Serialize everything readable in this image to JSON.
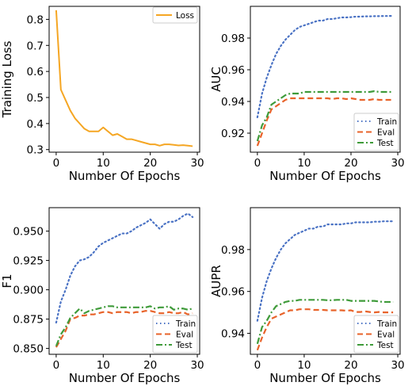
{
  "chart_data": [
    {
      "type": "line",
      "xlabel": "Number Of Epochs",
      "ylabel": "Training Loss",
      "xlim": [
        -1.5,
        30.5
      ],
      "ylim": [
        0.29,
        0.85
      ],
      "xticks": [
        "0",
        "10",
        "20",
        "30"
      ],
      "yticks": [
        "0.3",
        "0.4",
        "0.5",
        "0.6",
        "0.7",
        "0.8"
      ],
      "legend_position": "top-right",
      "grid": false,
      "series": [
        {
          "name": "Loss",
          "color": "#f5a623",
          "style": "solid",
          "x": [
            0,
            1,
            2,
            3,
            4,
            5,
            6,
            7,
            8,
            9,
            10,
            11,
            12,
            13,
            14,
            15,
            16,
            17,
            18,
            19,
            20,
            21,
            22,
            23,
            24,
            25,
            26,
            27,
            28,
            29
          ],
          "values": [
            0.835,
            0.53,
            0.49,
            0.45,
            0.42,
            0.4,
            0.38,
            0.37,
            0.37,
            0.37,
            0.385,
            0.37,
            0.355,
            0.36,
            0.35,
            0.34,
            0.34,
            0.335,
            0.33,
            0.325,
            0.32,
            0.32,
            0.315,
            0.32,
            0.32,
            0.318,
            0.316,
            0.317,
            0.315,
            0.313
          ]
        }
      ]
    },
    {
      "type": "line",
      "xlabel": "Number Of Epochs",
      "ylabel": "AUC",
      "xlim": [
        -1.5,
        30.5
      ],
      "ylim": [
        0.908,
        1.0
      ],
      "xticks": [
        "0",
        "10",
        "20",
        "30"
      ],
      "yticks": [
        "0.92",
        "0.94",
        "0.96",
        "0.98"
      ],
      "legend_position": "bottom-right",
      "grid": false,
      "series": [
        {
          "name": "Train",
          "color": "#4a72c4",
          "style": "dotted",
          "x": [
            0,
            1,
            2,
            3,
            4,
            5,
            6,
            7,
            8,
            9,
            10,
            11,
            12,
            13,
            14,
            15,
            16,
            17,
            18,
            19,
            20,
            21,
            22,
            23,
            24,
            25,
            26,
            27,
            28,
            29
          ],
          "values": [
            0.93,
            0.945,
            0.955,
            0.963,
            0.97,
            0.975,
            0.979,
            0.982,
            0.985,
            0.987,
            0.988,
            0.989,
            0.99,
            0.991,
            0.991,
            0.992,
            0.992,
            0.9925,
            0.993,
            0.993,
            0.9932,
            0.9935,
            0.9935,
            0.9937,
            0.9937,
            0.9938,
            0.9938,
            0.9939,
            0.9939,
            0.994
          ]
        },
        {
          "name": "Eval",
          "color": "#e8632a",
          "style": "dashed",
          "x": [
            0,
            1,
            2,
            3,
            4,
            5,
            6,
            7,
            8,
            9,
            10,
            11,
            12,
            13,
            14,
            15,
            16,
            17,
            18,
            19,
            20,
            21,
            22,
            23,
            24,
            25,
            26,
            27,
            28,
            29
          ],
          "values": [
            0.912,
            0.92,
            0.928,
            0.935,
            0.937,
            0.939,
            0.941,
            0.942,
            0.942,
            0.942,
            0.942,
            0.942,
            0.942,
            0.942,
            0.942,
            0.942,
            0.9415,
            0.942,
            0.942,
            0.9415,
            0.942,
            0.9415,
            0.941,
            0.941,
            0.941,
            0.9415,
            0.941,
            0.941,
            0.941,
            0.941
          ]
        },
        {
          "name": "Test",
          "color": "#3f9b3a",
          "style": "dashdot",
          "x": [
            0,
            1,
            2,
            3,
            4,
            5,
            6,
            7,
            8,
            9,
            10,
            11,
            12,
            13,
            14,
            15,
            16,
            17,
            18,
            19,
            20,
            21,
            22,
            23,
            24,
            25,
            26,
            27,
            28,
            29
          ],
          "values": [
            0.915,
            0.925,
            0.93,
            0.938,
            0.94,
            0.942,
            0.944,
            0.945,
            0.945,
            0.945,
            0.946,
            0.946,
            0.946,
            0.946,
            0.946,
            0.946,
            0.946,
            0.946,
            0.946,
            0.946,
            0.946,
            0.946,
            0.946,
            0.946,
            0.946,
            0.9465,
            0.946,
            0.946,
            0.946,
            0.946
          ]
        }
      ]
    },
    {
      "type": "line",
      "xlabel": "Number Of Epochs",
      "ylabel": "F1",
      "xlim": [
        -1.5,
        30.5
      ],
      "ylim": [
        0.845,
        0.97
      ],
      "xticks": [
        "0",
        "10",
        "20",
        "30"
      ],
      "yticks": [
        "0.850",
        "0.875",
        "0.900",
        "0.925",
        "0.950"
      ],
      "legend_position": "bottom-right",
      "grid": false,
      "series": [
        {
          "name": "Train",
          "color": "#4a72c4",
          "style": "dotted",
          "x": [
            0,
            1,
            2,
            3,
            4,
            5,
            6,
            7,
            8,
            9,
            10,
            11,
            12,
            13,
            14,
            15,
            16,
            17,
            18,
            19,
            20,
            21,
            22,
            23,
            24,
            25,
            26,
            27,
            28,
            29
          ],
          "values": [
            0.872,
            0.89,
            0.9,
            0.912,
            0.92,
            0.925,
            0.926,
            0.928,
            0.932,
            0.937,
            0.94,
            0.942,
            0.944,
            0.946,
            0.948,
            0.948,
            0.95,
            0.953,
            0.955,
            0.957,
            0.96,
            0.956,
            0.952,
            0.956,
            0.958,
            0.958,
            0.96,
            0.963,
            0.965,
            0.962
          ]
        },
        {
          "name": "Eval",
          "color": "#e8632a",
          "style": "dashed",
          "x": [
            0,
            1,
            2,
            3,
            4,
            5,
            6,
            7,
            8,
            9,
            10,
            11,
            12,
            13,
            14,
            15,
            16,
            17,
            18,
            19,
            20,
            21,
            22,
            23,
            24,
            25,
            26,
            27,
            28,
            29
          ],
          "values": [
            0.851,
            0.858,
            0.865,
            0.875,
            0.876,
            0.878,
            0.878,
            0.879,
            0.879,
            0.88,
            0.881,
            0.881,
            0.88,
            0.881,
            0.881,
            0.881,
            0.88,
            0.881,
            0.881,
            0.882,
            0.882,
            0.881,
            0.88,
            0.88,
            0.881,
            0.88,
            0.88,
            0.881,
            0.879,
            0.88
          ]
        },
        {
          "name": "Test",
          "color": "#3f9b3a",
          "style": "dashdot",
          "x": [
            0,
            1,
            2,
            3,
            4,
            5,
            6,
            7,
            8,
            9,
            10,
            11,
            12,
            13,
            14,
            15,
            16,
            17,
            18,
            19,
            20,
            21,
            22,
            23,
            24,
            25,
            26,
            27,
            28,
            29
          ],
          "values": [
            0.852,
            0.862,
            0.868,
            0.876,
            0.88,
            0.884,
            0.88,
            0.882,
            0.883,
            0.884,
            0.885,
            0.886,
            0.886,
            0.885,
            0.885,
            0.885,
            0.885,
            0.885,
            0.885,
            0.885,
            0.886,
            0.884,
            0.885,
            0.885,
            0.886,
            0.883,
            0.884,
            0.884,
            0.883,
            0.884
          ]
        }
      ]
    },
    {
      "type": "line",
      "xlabel": "Number Of Epochs",
      "ylabel": "AUPR",
      "xlim": [
        -1.5,
        30.5
      ],
      "ylim": [
        0.93,
        1.0
      ],
      "xticks": [
        "0",
        "10",
        "20",
        "30"
      ],
      "yticks": [
        "0.94",
        "0.96",
        "0.98"
      ],
      "legend_position": "bottom-right",
      "grid": false,
      "series": [
        {
          "name": "Train",
          "color": "#4a72c4",
          "style": "dotted",
          "x": [
            0,
            1,
            2,
            3,
            4,
            5,
            6,
            7,
            8,
            9,
            10,
            11,
            12,
            13,
            14,
            15,
            16,
            17,
            18,
            19,
            20,
            21,
            22,
            23,
            24,
            25,
            26,
            27,
            28,
            29
          ],
          "values": [
            0.946,
            0.957,
            0.965,
            0.971,
            0.976,
            0.98,
            0.983,
            0.985,
            0.987,
            0.988,
            0.989,
            0.99,
            0.99,
            0.991,
            0.991,
            0.992,
            0.992,
            0.992,
            0.992,
            0.9925,
            0.9925,
            0.993,
            0.993,
            0.993,
            0.993,
            0.9933,
            0.9933,
            0.9935,
            0.9935,
            0.9935
          ]
        },
        {
          "name": "Eval",
          "color": "#e8632a",
          "style": "dashed",
          "x": [
            0,
            1,
            2,
            3,
            4,
            5,
            6,
            7,
            8,
            9,
            10,
            11,
            12,
            13,
            14,
            15,
            16,
            17,
            18,
            19,
            20,
            21,
            22,
            23,
            24,
            25,
            26,
            27,
            28,
            29
          ],
          "values": [
            0.932,
            0.938,
            0.943,
            0.947,
            0.948,
            0.949,
            0.95,
            0.951,
            0.951,
            0.9515,
            0.9515,
            0.9515,
            0.9512,
            0.9512,
            0.9512,
            0.951,
            0.951,
            0.951,
            0.951,
            0.9508,
            0.951,
            0.9502,
            0.9502,
            0.9505,
            0.9502,
            0.95,
            0.9502,
            0.95,
            0.95,
            0.95
          ]
        },
        {
          "name": "Test",
          "color": "#3f9b3a",
          "style": "dashdot",
          "x": [
            0,
            1,
            2,
            3,
            4,
            5,
            6,
            7,
            8,
            9,
            10,
            11,
            12,
            13,
            14,
            15,
            16,
            17,
            18,
            19,
            20,
            21,
            22,
            23,
            24,
            25,
            26,
            27,
            28,
            29
          ],
          "values": [
            0.935,
            0.943,
            0.946,
            0.95,
            0.953,
            0.954,
            0.955,
            0.9555,
            0.9555,
            0.956,
            0.956,
            0.956,
            0.956,
            0.956,
            0.956,
            0.9558,
            0.9558,
            0.956,
            0.956,
            0.956,
            0.9555,
            0.9555,
            0.9555,
            0.9555,
            0.9555,
            0.9555,
            0.9552,
            0.955,
            0.955,
            0.955
          ]
        }
      ]
    }
  ]
}
